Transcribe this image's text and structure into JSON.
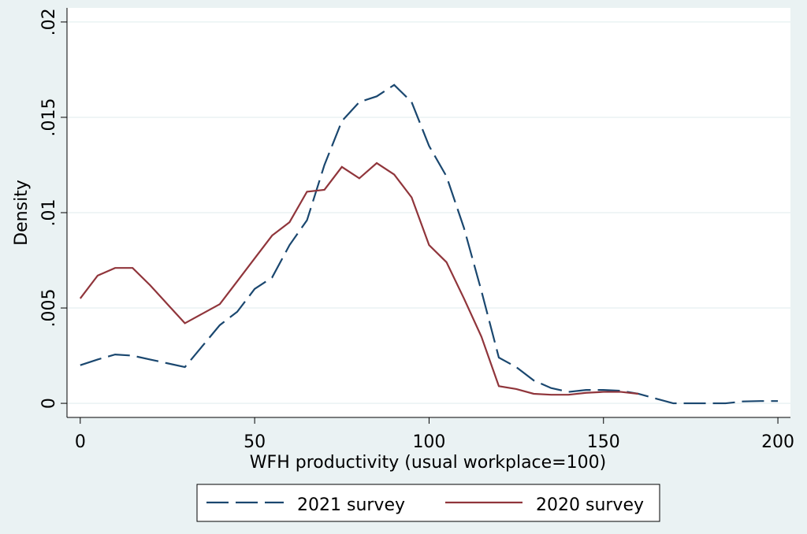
{
  "chart_data": {
    "type": "line",
    "xlabel": "WFH productivity (usual workplace=100)",
    "ylabel": "Density",
    "x": [
      0,
      5,
      10,
      15,
      20,
      25,
      30,
      35,
      40,
      45,
      50,
      55,
      60,
      65,
      70,
      75,
      80,
      85,
      90,
      95,
      100,
      105,
      110,
      115,
      120,
      125,
      130,
      135,
      140,
      145,
      150,
      155,
      160,
      165,
      170,
      175,
      180,
      185,
      190,
      195,
      200
    ],
    "series": [
      {
        "name": "2021 survey",
        "color": "#1a476f",
        "dash": "dashed",
        "values": [
          0.002,
          0.0023,
          0.00256,
          0.0025,
          0.0023,
          0.0021,
          0.0019,
          0.003,
          0.0041,
          0.0048,
          0.006,
          0.0066,
          0.0083,
          0.0096,
          0.0125,
          0.0148,
          0.0158,
          0.0161,
          0.0167,
          0.0158,
          0.0135,
          0.0119,
          0.0092,
          0.0059,
          0.0024,
          0.0019,
          0.0012,
          0.0008,
          0.0006,
          0.0007,
          0.0007,
          0.00066,
          0.0005,
          0.00025,
          0,
          0,
          0,
          0,
          0.0001,
          0.00012,
          0.00012
        ]
      },
      {
        "name": "2020 survey",
        "color": "#90353b",
        "dash": "solid",
        "values": [
          0.0055,
          0.0067,
          0.0071,
          0.0071,
          0.0062,
          0.0052,
          0.0042,
          0.0047,
          0.0052,
          0.0064,
          0.0076,
          0.0088,
          0.0095,
          0.0111,
          0.0112,
          0.0124,
          0.0118,
          0.0126,
          0.012,
          0.0108,
          0.0083,
          0.0074,
          0.0055,
          0.0035,
          0.0009,
          0.00075,
          0.0005,
          0.00045,
          0.00045,
          0.00055,
          0.0006,
          0.0006,
          0.0005,
          null,
          null,
          null,
          null,
          null,
          null,
          null,
          null
        ]
      }
    ],
    "xlim": [
      -3.8,
      203.6
    ],
    "ylim": [
      -0.00074,
      0.02074
    ],
    "xticks": [
      0,
      50,
      100,
      150,
      200
    ],
    "yticks": [
      0,
      {
        "value": 0.005,
        "label": ".005"
      },
      {
        "value": 0.01,
        "label": ".01"
      },
      {
        "value": 0.015,
        "label": ".015"
      },
      {
        "value": 0.02,
        "label": ".02"
      }
    ],
    "grid": true,
    "legend": "bottom"
  }
}
